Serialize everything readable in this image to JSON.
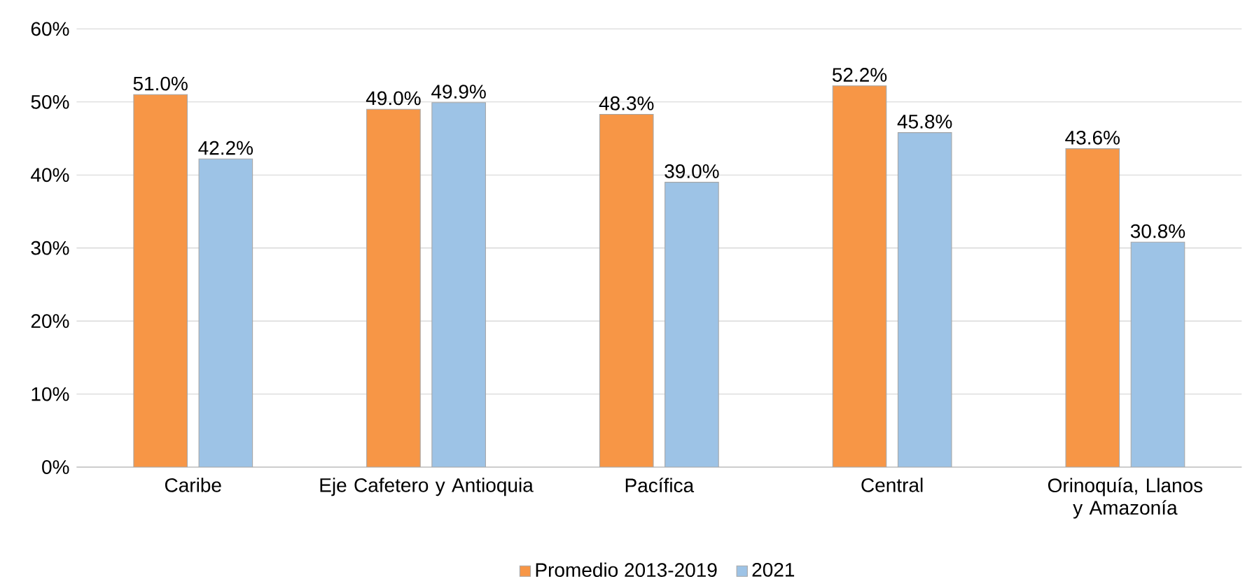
{
  "chart_data": {
    "type": "bar",
    "categories": [
      "Caribe",
      "Eje Cafetero y Antioquia",
      "Pacífica",
      "Central",
      "Orinoquía, Llanos y Amazonía"
    ],
    "series": [
      {
        "name": "Promedio 2013-2019",
        "color": "#f79646",
        "values": [
          51.0,
          49.0,
          48.3,
          52.2,
          43.6
        ],
        "value_labels": [
          "51.0%",
          "49.0%",
          "48.3%",
          "52.2%",
          "43.6%"
        ]
      },
      {
        "name": "2021",
        "color": "#9dc3e6",
        "values": [
          42.2,
          49.9,
          39.0,
          45.8,
          30.8
        ],
        "value_labels": [
          "42.2%",
          "49.9%",
          "39.0%",
          "45.8%",
          "30.8%"
        ]
      }
    ],
    "ylim": [
      0,
      60
    ],
    "yticks": [
      {
        "value": 0,
        "label": "0%"
      },
      {
        "value": 10,
        "label": "10%"
      },
      {
        "value": 20,
        "label": "20%"
      },
      {
        "value": 30,
        "label": "30%"
      },
      {
        "value": 40,
        "label": "40%"
      },
      {
        "value": 50,
        "label": "50%"
      },
      {
        "value": 60,
        "label": "60%"
      }
    ],
    "grid": "y",
    "legend": "bottom"
  }
}
